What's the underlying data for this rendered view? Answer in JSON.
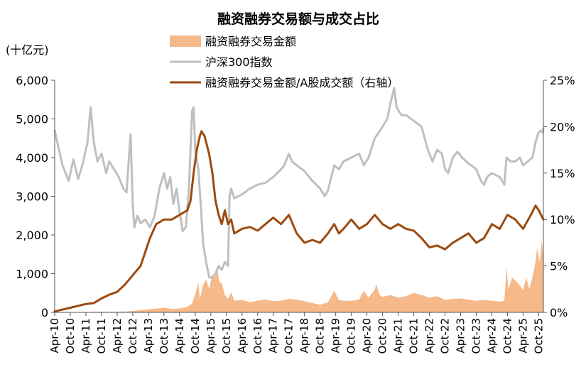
{
  "chart_data": {
    "type": "line",
    "title": "融资融券交易额与成交占比",
    "left_axis_unit": "(十亿元)",
    "left_ylim": [
      0,
      6000
    ],
    "left_ticks": [
      "0",
      "1,000",
      "2,000",
      "3,000",
      "4,000",
      "5,000",
      "6,000"
    ],
    "left_tick_values": [
      0,
      1000,
      2000,
      3000,
      4000,
      5000,
      6000
    ],
    "right_ylim": [
      0,
      25
    ],
    "right_ticks": [
      "0%",
      "5%",
      "10%",
      "15%",
      "20%",
      "25%"
    ],
    "right_tick_values": [
      0,
      5,
      10,
      15,
      20,
      25
    ],
    "x_range": [
      2010.25,
      2025.9
    ],
    "x_ticks": [
      "Apr-10",
      "Oct-10",
      "Apr-11",
      "Oct-11",
      "Apr-12",
      "Oct-12",
      "Apr-13",
      "Oct-13",
      "Apr-14",
      "Oct-14",
      "Apr-15",
      "Oct-15",
      "Apr-16",
      "Oct-16",
      "Apr-17",
      "Oct-17",
      "Apr-18",
      "Oct-18",
      "Apr-19",
      "Oct-19",
      "Apr-20",
      "Oct-20",
      "Apr-21",
      "Oct-21",
      "Apr-22",
      "Oct-22",
      "Apr-23",
      "Oct-23",
      "Apr-24",
      "Oct-24",
      "Apr-25",
      "Oct-25"
    ],
    "x_tick_values": [
      2010.25,
      2010.75,
      2011.25,
      2011.75,
      2012.25,
      2012.75,
      2013.25,
      2013.75,
      2014.25,
      2014.75,
      2015.25,
      2015.75,
      2016.25,
      2016.75,
      2017.25,
      2017.75,
      2018.25,
      2018.75,
      2019.25,
      2019.75,
      2020.25,
      2020.75,
      2021.25,
      2021.75,
      2022.25,
      2022.75,
      2023.25,
      2023.75,
      2024.25,
      2024.75,
      2025.25,
      2025.75
    ],
    "legend_placement": "top-center",
    "grid": false,
    "series": [
      {
        "name": "融资融券交易金额",
        "kind": "area",
        "axis": "left",
        "color": "#f5b98a",
        "points": [
          [
            2010.25,
            0
          ],
          [
            2010.75,
            5
          ],
          [
            2011.0,
            8
          ],
          [
            2011.5,
            12
          ],
          [
            2012.0,
            15
          ],
          [
            2012.5,
            20
          ],
          [
            2012.75,
            35
          ],
          [
            2013.0,
            60
          ],
          [
            2013.5,
            95
          ],
          [
            2013.75,
            120
          ],
          [
            2014.0,
            90
          ],
          [
            2014.25,
            100
          ],
          [
            2014.5,
            140
          ],
          [
            2014.65,
            230
          ],
          [
            2014.75,
            450
          ],
          [
            2014.85,
            780
          ],
          [
            2014.9,
            350
          ],
          [
            2015.0,
            700
          ],
          [
            2015.1,
            850
          ],
          [
            2015.2,
            600
          ],
          [
            2015.3,
            1000
          ],
          [
            2015.38,
            900
          ],
          [
            2015.45,
            1150
          ],
          [
            2015.52,
            800
          ],
          [
            2015.6,
            750
          ],
          [
            2015.7,
            450
          ],
          [
            2015.8,
            350
          ],
          [
            2015.9,
            520
          ],
          [
            2016.0,
            300
          ],
          [
            2016.25,
            320
          ],
          [
            2016.5,
            260
          ],
          [
            2016.75,
            300
          ],
          [
            2017.0,
            330
          ],
          [
            2017.25,
            290
          ],
          [
            2017.5,
            300
          ],
          [
            2017.75,
            350
          ],
          [
            2018.0,
            330
          ],
          [
            2018.25,
            290
          ],
          [
            2018.5,
            240
          ],
          [
            2018.75,
            200
          ],
          [
            2019.0,
            260
          ],
          [
            2019.2,
            560
          ],
          [
            2019.35,
            320
          ],
          [
            2019.5,
            300
          ],
          [
            2019.75,
            300
          ],
          [
            2020.0,
            330
          ],
          [
            2020.15,
            560
          ],
          [
            2020.3,
            380
          ],
          [
            2020.5,
            580
          ],
          [
            2020.55,
            740
          ],
          [
            2020.65,
            450
          ],
          [
            2020.75,
            400
          ],
          [
            2021.0,
            450
          ],
          [
            2021.25,
            380
          ],
          [
            2021.5,
            420
          ],
          [
            2021.75,
            500
          ],
          [
            2022.0,
            450
          ],
          [
            2022.25,
            380
          ],
          [
            2022.5,
            420
          ],
          [
            2022.75,
            320
          ],
          [
            2023.0,
            350
          ],
          [
            2023.25,
            360
          ],
          [
            2023.5,
            330
          ],
          [
            2023.75,
            300
          ],
          [
            2024.0,
            320
          ],
          [
            2024.25,
            300
          ],
          [
            2024.5,
            280
          ],
          [
            2024.65,
            300
          ],
          [
            2024.72,
            1150
          ],
          [
            2024.78,
            600
          ],
          [
            2024.9,
            900
          ],
          [
            2025.1,
            750
          ],
          [
            2025.25,
            580
          ],
          [
            2025.35,
            900
          ],
          [
            2025.45,
            600
          ],
          [
            2025.55,
            900
          ],
          [
            2025.65,
            1300
          ],
          [
            2025.7,
            1680
          ],
          [
            2025.78,
            1300
          ],
          [
            2025.85,
            1850
          ],
          [
            2025.9,
            1450
          ]
        ]
      },
      {
        "name": "沪深300指数",
        "kind": "line",
        "axis": "left",
        "color": "#bfbfbf",
        "points": [
          [
            2010.25,
            4700
          ],
          [
            2010.5,
            3800
          ],
          [
            2010.7,
            3400
          ],
          [
            2010.85,
            3950
          ],
          [
            2011.0,
            3450
          ],
          [
            2011.15,
            3850
          ],
          [
            2011.3,
            4400
          ],
          [
            2011.4,
            5300
          ],
          [
            2011.5,
            4400
          ],
          [
            2011.62,
            3900
          ],
          [
            2011.75,
            4100
          ],
          [
            2011.9,
            3600
          ],
          [
            2012.0,
            3900
          ],
          [
            2012.15,
            3700
          ],
          [
            2012.3,
            3500
          ],
          [
            2012.45,
            3200
          ],
          [
            2012.55,
            3100
          ],
          [
            2012.68,
            4600
          ],
          [
            2012.75,
            2800
          ],
          [
            2012.8,
            2200
          ],
          [
            2012.9,
            2500
          ],
          [
            2013.0,
            2300
          ],
          [
            2013.15,
            2400
          ],
          [
            2013.3,
            2200
          ],
          [
            2013.45,
            2500
          ],
          [
            2013.6,
            3200
          ],
          [
            2013.75,
            3600
          ],
          [
            2013.85,
            3200
          ],
          [
            2013.95,
            3500
          ],
          [
            2014.05,
            2800
          ],
          [
            2014.15,
            3200
          ],
          [
            2014.25,
            2600
          ],
          [
            2014.35,
            2100
          ],
          [
            2014.45,
            2200
          ],
          [
            2014.55,
            3200
          ],
          [
            2014.65,
            5200
          ],
          [
            2014.7,
            5300
          ],
          [
            2014.75,
            4200
          ],
          [
            2014.85,
            3700
          ],
          [
            2014.95,
            2500
          ],
          [
            2015.0,
            1800
          ],
          [
            2015.1,
            1300
          ],
          [
            2015.2,
            900
          ],
          [
            2015.3,
            900
          ],
          [
            2015.4,
            1000
          ],
          [
            2015.5,
            1200
          ],
          [
            2015.6,
            1100
          ],
          [
            2015.7,
            1300
          ],
          [
            2015.8,
            1200
          ],
          [
            2015.85,
            3000
          ],
          [
            2015.9,
            3200
          ],
          [
            2016.0,
            2950
          ],
          [
            2016.25,
            3050
          ],
          [
            2016.5,
            3200
          ],
          [
            2016.75,
            3300
          ],
          [
            2017.0,
            3350
          ],
          [
            2017.25,
            3500
          ],
          [
            2017.5,
            3700
          ],
          [
            2017.6,
            3800
          ],
          [
            2017.75,
            4100
          ],
          [
            2017.85,
            3900
          ],
          [
            2018.0,
            3800
          ],
          [
            2018.25,
            3650
          ],
          [
            2018.5,
            3400
          ],
          [
            2018.75,
            3200
          ],
          [
            2018.9,
            3000
          ],
          [
            2019.0,
            3150
          ],
          [
            2019.2,
            3800
          ],
          [
            2019.35,
            3700
          ],
          [
            2019.5,
            3900
          ],
          [
            2019.75,
            4000
          ],
          [
            2020.0,
            4100
          ],
          [
            2020.15,
            3800
          ],
          [
            2020.3,
            4000
          ],
          [
            2020.5,
            4500
          ],
          [
            2020.75,
            4800
          ],
          [
            2020.9,
            5000
          ],
          [
            2021.0,
            5400
          ],
          [
            2021.12,
            5800
          ],
          [
            2021.2,
            5300
          ],
          [
            2021.35,
            5100
          ],
          [
            2021.5,
            5100
          ],
          [
            2021.75,
            4950
          ],
          [
            2022.0,
            4800
          ],
          [
            2022.2,
            4200
          ],
          [
            2022.35,
            3900
          ],
          [
            2022.5,
            4200
          ],
          [
            2022.65,
            4100
          ],
          [
            2022.75,
            3700
          ],
          [
            2022.85,
            3600
          ],
          [
            2023.0,
            4000
          ],
          [
            2023.15,
            4150
          ],
          [
            2023.3,
            4000
          ],
          [
            2023.5,
            3850
          ],
          [
            2023.75,
            3700
          ],
          [
            2023.9,
            3400
          ],
          [
            2024.0,
            3300
          ],
          [
            2024.1,
            3500
          ],
          [
            2024.25,
            3600
          ],
          [
            2024.5,
            3500
          ],
          [
            2024.65,
            3300
          ],
          [
            2024.72,
            4000
          ],
          [
            2024.85,
            3900
          ],
          [
            2025.0,
            3900
          ],
          [
            2025.15,
            4000
          ],
          [
            2025.25,
            3800
          ],
          [
            2025.4,
            3900
          ],
          [
            2025.55,
            4000
          ],
          [
            2025.65,
            4400
          ],
          [
            2025.72,
            4600
          ],
          [
            2025.8,
            4700
          ],
          [
            2025.88,
            4650
          ],
          [
            2025.9,
            4750
          ]
        ]
      },
      {
        "name": "融资融券交易金额/A股成交额（右轴）",
        "kind": "line",
        "axis": "right",
        "color": "#9c4a10",
        "points": [
          [
            2010.25,
            0.1
          ],
          [
            2010.5,
            0.3
          ],
          [
            2010.75,
            0.5
          ],
          [
            2011.0,
            0.7
          ],
          [
            2011.25,
            0.9
          ],
          [
            2011.5,
            1.0
          ],
          [
            2011.75,
            1.5
          ],
          [
            2012.0,
            1.9
          ],
          [
            2012.25,
            2.2
          ],
          [
            2012.5,
            3.0
          ],
          [
            2012.75,
            4.0
          ],
          [
            2013.0,
            5.0
          ],
          [
            2013.15,
            6.5
          ],
          [
            2013.3,
            8.0
          ],
          [
            2013.5,
            9.5
          ],
          [
            2013.75,
            10.0
          ],
          [
            2014.0,
            10.0
          ],
          [
            2014.25,
            10.5
          ],
          [
            2014.5,
            11.0
          ],
          [
            2014.6,
            12.0
          ],
          [
            2014.7,
            15.0
          ],
          [
            2014.8,
            17.5
          ],
          [
            2014.9,
            19.0
          ],
          [
            2014.95,
            19.5
          ],
          [
            2015.05,
            19.0
          ],
          [
            2015.2,
            17.0
          ],
          [
            2015.3,
            15.0
          ],
          [
            2015.4,
            12.0
          ],
          [
            2015.5,
            10.5
          ],
          [
            2015.6,
            9.5
          ],
          [
            2015.7,
            11.0
          ],
          [
            2015.8,
            9.5
          ],
          [
            2015.9,
            10.0
          ],
          [
            2016.0,
            8.5
          ],
          [
            2016.25,
            9.0
          ],
          [
            2016.5,
            9.2
          ],
          [
            2016.75,
            8.8
          ],
          [
            2017.0,
            9.5
          ],
          [
            2017.25,
            10.2
          ],
          [
            2017.5,
            9.5
          ],
          [
            2017.75,
            10.5
          ],
          [
            2018.0,
            8.5
          ],
          [
            2018.25,
            7.5
          ],
          [
            2018.5,
            7.8
          ],
          [
            2018.75,
            7.5
          ],
          [
            2019.0,
            8.5
          ],
          [
            2019.2,
            9.5
          ],
          [
            2019.35,
            8.5
          ],
          [
            2019.5,
            9.0
          ],
          [
            2019.75,
            10.0
          ],
          [
            2020.0,
            9.0
          ],
          [
            2020.25,
            9.5
          ],
          [
            2020.5,
            10.5
          ],
          [
            2020.75,
            9.5
          ],
          [
            2021.0,
            9.0
          ],
          [
            2021.25,
            9.5
          ],
          [
            2021.5,
            9.0
          ],
          [
            2021.75,
            8.8
          ],
          [
            2022.0,
            8.0
          ],
          [
            2022.25,
            7.0
          ],
          [
            2022.5,
            7.2
          ],
          [
            2022.75,
            6.8
          ],
          [
            2023.0,
            7.5
          ],
          [
            2023.25,
            8.0
          ],
          [
            2023.5,
            8.5
          ],
          [
            2023.75,
            7.5
          ],
          [
            2024.0,
            8.0
          ],
          [
            2024.25,
            9.5
          ],
          [
            2024.5,
            9.0
          ],
          [
            2024.75,
            10.5
          ],
          [
            2025.0,
            10.0
          ],
          [
            2025.25,
            9.0
          ],
          [
            2025.5,
            10.5
          ],
          [
            2025.65,
            11.5
          ],
          [
            2025.75,
            11.0
          ],
          [
            2025.9,
            10.0
          ]
        ]
      }
    ]
  }
}
